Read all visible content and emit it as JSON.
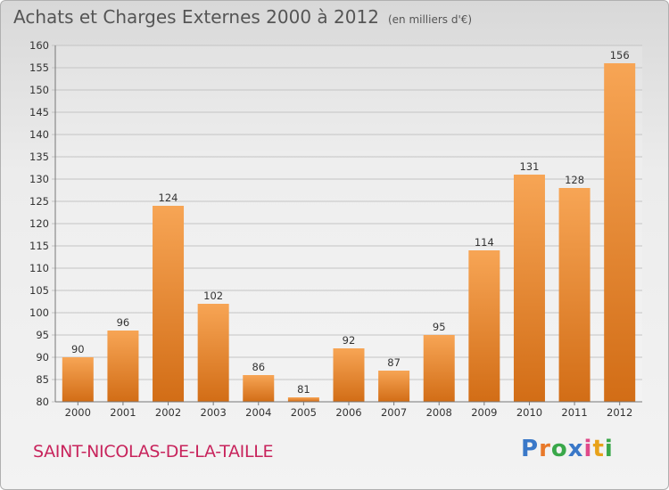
{
  "header": {
    "title": "Achats et Charges Externes 2000 à 2012",
    "unit": "(en milliers d'€)"
  },
  "footer": {
    "town": "SAINT-NICOLAS-DE-LA-TAILLE",
    "logo_text": "Proxiti",
    "logo_colors": [
      "#3a78c8",
      "#e8792a",
      "#3aa84a",
      "#3a78c8",
      "#e04a8a",
      "#e8a21a",
      "#3aa84a"
    ]
  },
  "chart_data": {
    "type": "bar",
    "categories": [
      "2000",
      "2001",
      "2002",
      "2003",
      "2004",
      "2005",
      "2006",
      "2007",
      "2008",
      "2009",
      "2010",
      "2011",
      "2012"
    ],
    "values": [
      90,
      96,
      124,
      102,
      86,
      81,
      92,
      87,
      95,
      114,
      131,
      128,
      156
    ],
    "title": "Achats et Charges Externes 2000 à 2012",
    "xlabel": "",
    "ylabel": "",
    "ylim": [
      80,
      160
    ],
    "yticks": [
      80,
      85,
      90,
      95,
      100,
      105,
      110,
      115,
      120,
      125,
      130,
      135,
      140,
      145,
      150,
      155,
      160
    ],
    "grid": true,
    "bar_color": "#f0943e"
  }
}
